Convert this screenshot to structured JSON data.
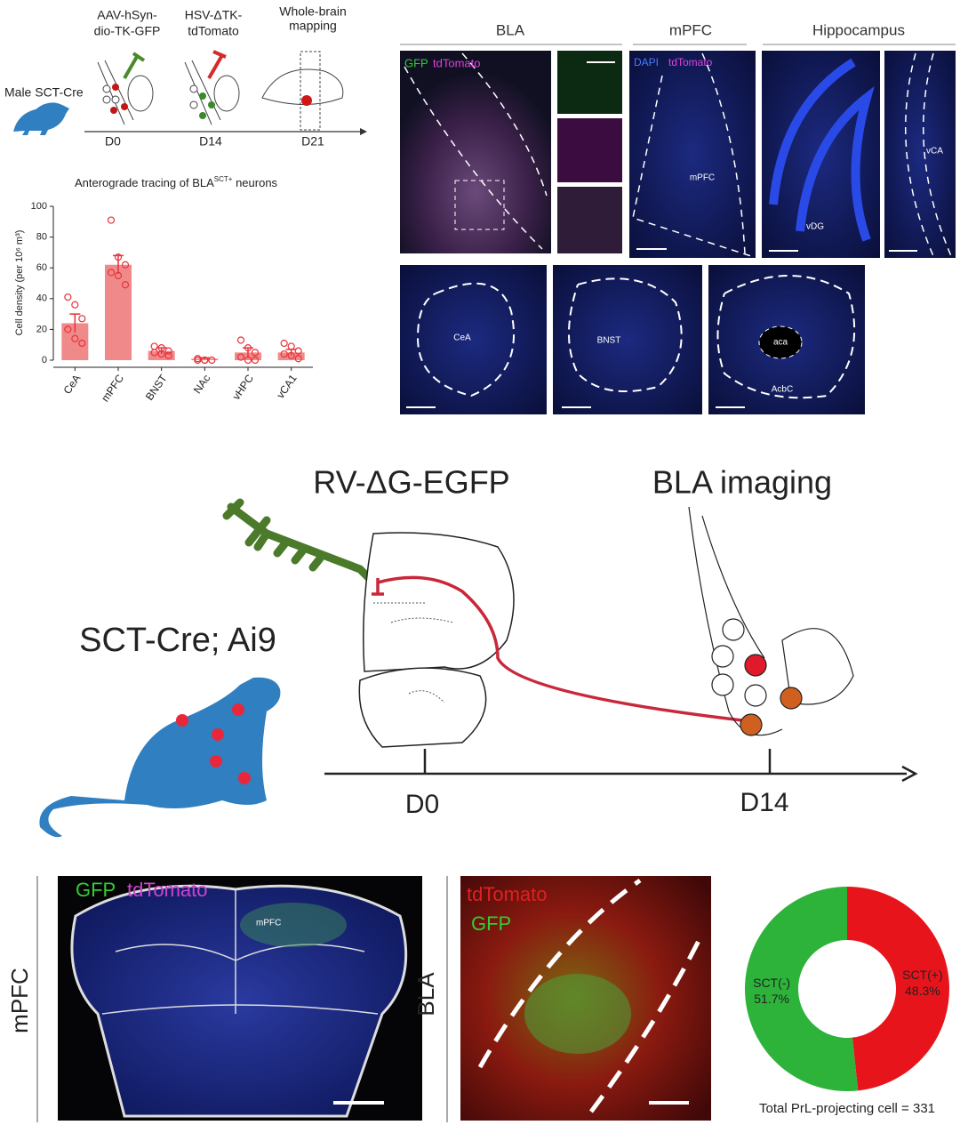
{
  "top_schematic": {
    "injection_1": [
      "AAV-hSyn-",
      "dio-TK-GFP"
    ],
    "injection_2": [
      "HSV-ΔTK-",
      "tdTomato"
    ],
    "step_3": [
      "Whole-brain",
      "mapping"
    ],
    "animal": "Male SCT-Cre",
    "days": [
      "D0",
      "D14",
      "D21"
    ]
  },
  "bar_chart": {
    "type": "bar",
    "title": [
      "Anterograde tracing of BLA",
      "SCT+",
      " neurons"
    ],
    "y_label": "Cell density (per 10⁶ m³)",
    "categories": [
      "CeA",
      "mPFC",
      "BNST",
      "NAc",
      "vHPC",
      "vCA1"
    ],
    "values": [
      24,
      62,
      6,
      1,
      5,
      5
    ],
    "errors": [
      6,
      6,
      2,
      0.5,
      3,
      2
    ],
    "points": [
      [
        41,
        36,
        27,
        20,
        14,
        11
      ],
      [
        91,
        67,
        62,
        57,
        55,
        49
      ],
      [
        9,
        8,
        6,
        5,
        4,
        3
      ],
      [
        1,
        0,
        0,
        0,
        0
      ],
      [
        13,
        8,
        5,
        2,
        0,
        0
      ],
      [
        11,
        9,
        6,
        4,
        3,
        1
      ]
    ],
    "color": "#f08a8a",
    "point_color": "#e8323a",
    "ylim": [
      0,
      100
    ],
    "yticks": [
      0,
      20,
      40,
      60,
      80,
      100
    ]
  },
  "top_images": {
    "headers": [
      "BLA",
      "mPFC",
      "Hippocampus"
    ],
    "bla_channels": [
      "GFP",
      "tdTomato"
    ],
    "mpfc_channels": [
      "DAPI",
      "tdTomato"
    ],
    "region_labels": [
      "mPFC",
      "vDG",
      "vCA",
      "CeA",
      "BNST",
      "aca",
      "AcbC"
    ]
  },
  "middle_schematic": {
    "virus": "RV-ΔG-EGFP",
    "imaging": "BLA imaging",
    "animal": "SCT-Cre; Ai9",
    "days": [
      "D0",
      "D14"
    ]
  },
  "bottom_images": {
    "mpfc_side": "mPFC",
    "mpfc_channels": [
      "GFP",
      "tdTomato"
    ],
    "mpfc_region": "mPFC",
    "bla_side": "BLA",
    "bla_channels": [
      "tdTomato",
      "GFP"
    ]
  },
  "donut_chart": {
    "type": "donut",
    "labels": [
      "SCT(+)",
      "SCT(-)"
    ],
    "values": [
      48.3,
      51.7
    ],
    "value_labels": [
      "48.3%",
      "51.7%"
    ],
    "colors": [
      "#e8141c",
      "#2db33a"
    ],
    "caption": "Total PrL-projecting cell = 331"
  }
}
